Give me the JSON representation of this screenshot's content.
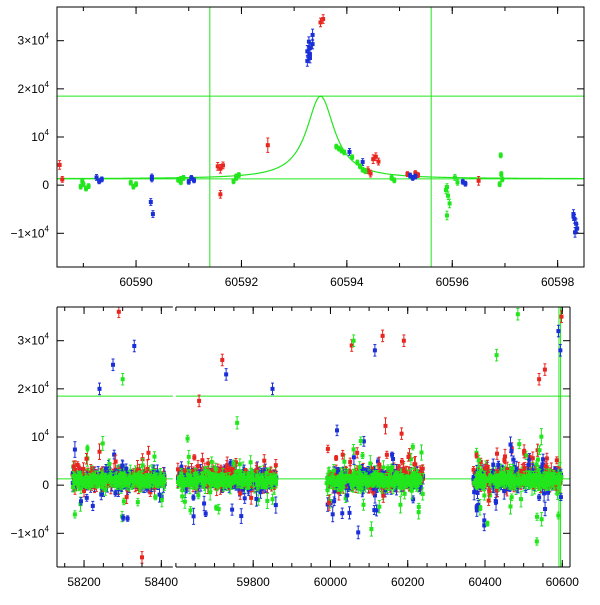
{
  "colors": {
    "red": "#e8261f",
    "blue": "#1a2fd8",
    "green": "#22e61c",
    "axis": "#000000"
  },
  "chart_data": [
    {
      "type": "scatter",
      "panel": "top",
      "title": "",
      "xlabel": "",
      "ylabel": "",
      "xlim": [
        60588.5,
        60598.5
      ],
      "ylim": [
        -17000,
        37000
      ],
      "x_ticks": [
        60590,
        60592,
        60594,
        60596,
        60598
      ],
      "x_tick_labels": [
        "60590",
        "60592",
        "60594",
        "60596",
        "60598"
      ],
      "y_ticks": [
        -10000,
        0,
        10000,
        20000,
        30000
      ],
      "y_tick_labels": [
        {
          "mant": "−1×10",
          "exp": "4"
        },
        {
          "mant": "0",
          "exp": ""
        },
        {
          "mant": "10",
          "exp": "4"
        },
        {
          "mant": "2×10",
          "exp": "4"
        },
        {
          "mant": "3×10",
          "exp": "4"
        }
      ],
      "hlines": [
        18500,
        1300
      ],
      "vlines": [
        60591.4,
        60595.6
      ],
      "model_curve": {
        "baseline": 1300,
        "amplitude": 17200,
        "t0": 60593.5,
        "tE": 0.32
      },
      "series": [
        {
          "color": "red",
          "points": [
            [
              60588.55,
              4200,
              900
            ],
            [
              60588.6,
              1200,
              600
            ],
            [
              60591.55,
              3900,
              800
            ],
            [
              60591.6,
              3400,
              900
            ],
            [
              60591.65,
              4100,
              700
            ],
            [
              60591.6,
              -1900,
              800
            ],
            [
              60592.5,
              8300,
              1500
            ],
            [
              60593.55,
              34500,
              900
            ],
            [
              60593.5,
              33800,
              900
            ],
            [
              60594.4,
              3100,
              700
            ],
            [
              60594.5,
              5400,
              900
            ],
            [
              60594.55,
              5900,
              800
            ],
            [
              60594.6,
              4900,
              700
            ],
            [
              60594.45,
              2400,
              700
            ],
            [
              60595.15,
              2300,
              500
            ],
            [
              60595.3,
              2500,
              500
            ],
            [
              60595.35,
              2100,
              500
            ],
            [
              60596.5,
              900,
              900
            ]
          ]
        },
        {
          "color": "blue",
          "points": [
            [
              60589.25,
              1600,
              600
            ],
            [
              60589.3,
              800,
              500
            ],
            [
              60589.35,
              1200,
              500
            ],
            [
              60590.3,
              1300,
              600
            ],
            [
              60590.3,
              1700,
              600
            ],
            [
              60590.28,
              -3500,
              700
            ],
            [
              60590.32,
              -6000,
              700
            ],
            [
              60591.0,
              700,
              500
            ],
            [
              60591.05,
              1500,
              500
            ],
            [
              60591.1,
              1000,
              500
            ],
            [
              60593.25,
              27800,
              1200
            ],
            [
              60593.3,
              26400,
              1000
            ],
            [
              60593.35,
              29300,
              1000
            ],
            [
              60593.3,
              28500,
              900
            ],
            [
              60593.25,
              25800,
              1100
            ],
            [
              60593.3,
              27200,
              900
            ],
            [
              60593.35,
              31200,
              1200
            ],
            [
              60593.28,
              29800,
              1000
            ],
            [
              60594.3,
              4800,
              700
            ],
            [
              60594.05,
              6900,
              700
            ],
            [
              60595.2,
              2000,
              500
            ],
            [
              60595.25,
              1500,
              500
            ],
            [
              60595.3,
              1800,
              500
            ],
            [
              60596.2,
              700,
              500
            ],
            [
              60596.25,
              300,
              500
            ],
            [
              60598.3,
              -6000,
              900
            ],
            [
              60598.32,
              -7000,
              900
            ],
            [
              60598.35,
              -8000,
              1000
            ],
            [
              60598.37,
              -9000,
              900
            ],
            [
              60598.33,
              -9800,
              1000
            ],
            [
              60598.3,
              -6500,
              800
            ]
          ]
        },
        {
          "color": "green",
          "points": [
            [
              60588.95,
              -300,
              500
            ],
            [
              60589.0,
              200,
              500
            ],
            [
              60589.05,
              -700,
              500
            ],
            [
              60589.1,
              -200,
              500
            ],
            [
              60588.98,
              800,
              500
            ],
            [
              60589.9,
              500,
              500
            ],
            [
              60589.95,
              -300,
              500
            ],
            [
              60590.0,
              200,
              500
            ],
            [
              60590.8,
              1100,
              500
            ],
            [
              60590.85,
              600,
              500
            ],
            [
              60590.9,
              1500,
              500
            ],
            [
              60590.85,
              1300,
              500
            ],
            [
              60591.85,
              800,
              500
            ],
            [
              60591.9,
              1500,
              500
            ],
            [
              60591.95,
              2100,
              500
            ],
            [
              60591.9,
              1800,
              500
            ],
            [
              60593.8,
              8000,
              500
            ],
            [
              60593.85,
              7600,
              500
            ],
            [
              60593.9,
              7200,
              500
            ],
            [
              60593.95,
              6800,
              500
            ],
            [
              60594.1,
              5800,
              500
            ],
            [
              60594.2,
              4700,
              500
            ],
            [
              60594.25,
              3900,
              500
            ],
            [
              60594.3,
              3200,
              500
            ],
            [
              60594.35,
              2900,
              500
            ],
            [
              60594.85,
              1500,
              500
            ],
            [
              60594.9,
              1000,
              500
            ],
            [
              60595.9,
              -400,
              700
            ],
            [
              60595.92,
              -2200,
              800
            ],
            [
              60595.88,
              -1000,
              800
            ],
            [
              60595.95,
              -3800,
              900
            ],
            [
              60595.9,
              -6300,
              900
            ],
            [
              60596.05,
              1600,
              600
            ],
            [
              60596.1,
              600,
              600
            ],
            [
              60596.9,
              200,
              500
            ],
            [
              60596.95,
              1200,
              500
            ],
            [
              60596.92,
              6200,
              500
            ],
            [
              60596.93,
              2300,
              500
            ]
          ]
        }
      ]
    },
    {
      "type": "scatter",
      "panel": "bottom",
      "title": "",
      "xlabel": "",
      "ylabel": "",
      "xlim": [
        58130,
        60620
      ],
      "ylim": [
        -17000,
        37000
      ],
      "axis_break": {
        "from": 58430,
        "to": 59600,
        "gap_px": 3
      },
      "x_ticks": [
        58200,
        58400,
        59800,
        60000,
        60200,
        60400,
        60600
      ],
      "x_tick_labels": [
        "58200",
        "58400",
        "59800",
        "60000",
        "60200",
        "60400",
        "60600"
      ],
      "y_ticks": [
        -10000,
        0,
        10000,
        20000,
        30000
      ],
      "y_tick_labels": [
        {
          "mant": "−1×10",
          "exp": "4"
        },
        {
          "mant": "0",
          "exp": ""
        },
        {
          "mant": "10",
          "exp": "4"
        },
        {
          "mant": "2×10",
          "exp": "4"
        },
        {
          "mant": "3×10",
          "exp": "4"
        }
      ],
      "hlines": [
        18500,
        1300
      ],
      "vlines": [
        60591.4,
        60595.6
      ],
      "seasons": [
        {
          "x_range": [
            58170,
            58410
          ],
          "dense_points": 360,
          "scatter_points": 70,
          "outliers": [
            {
              "x": 58275,
              "y": 25000,
              "color": "blue"
            },
            {
              "x": 58330,
              "y": 28900,
              "color": "blue"
            },
            {
              "x": 58290,
              "y": 36000,
              "color": "red"
            },
            {
              "x": 58240,
              "y": 20000,
              "color": "blue"
            },
            {
              "x": 58350,
              "y": -15000,
              "color": "red"
            },
            {
              "x": 58300,
              "y": 22000,
              "color": "green"
            }
          ]
        },
        {
          "x_range": [
            59605,
            59860
          ],
          "dense_points": 380,
          "scatter_points": 80,
          "outliers": [
            {
              "x": 59730,
              "y": 23000,
              "color": "blue"
            },
            {
              "x": 59720,
              "y": 26000,
              "color": "red"
            },
            {
              "x": 59850,
              "y": 20000,
              "color": "blue"
            },
            {
              "x": 59660,
              "y": 17500,
              "color": "red"
            }
          ]
        },
        {
          "x_range": [
            59990,
            60240
          ],
          "dense_points": 420,
          "scatter_points": 110,
          "outliers": [
            {
              "x": 60135,
              "y": 31000,
              "color": "red"
            },
            {
              "x": 60055,
              "y": 29000,
              "color": "red"
            },
            {
              "x": 60115,
              "y": 28000,
              "color": "blue"
            },
            {
              "x": 60190,
              "y": 30000,
              "color": "red"
            },
            {
              "x": 60060,
              "y": 30000,
              "color": "green"
            }
          ]
        },
        {
          "x_range": [
            60370,
            60598
          ],
          "dense_points": 400,
          "scatter_points": 110,
          "outliers": [
            {
              "x": 60590,
              "y": 32000,
              "color": "blue"
            },
            {
              "x": 60595,
              "y": 28000,
              "color": "blue"
            },
            {
              "x": 60598,
              "y": 35000,
              "color": "red"
            },
            {
              "x": 60485,
              "y": 35500,
              "color": "green"
            },
            {
              "x": 60430,
              "y": 27000,
              "color": "green"
            },
            {
              "x": 60540,
              "y": 22000,
              "color": "red"
            },
            {
              "x": 60555,
              "y": 24000,
              "color": "red"
            }
          ]
        }
      ]
    }
  ]
}
